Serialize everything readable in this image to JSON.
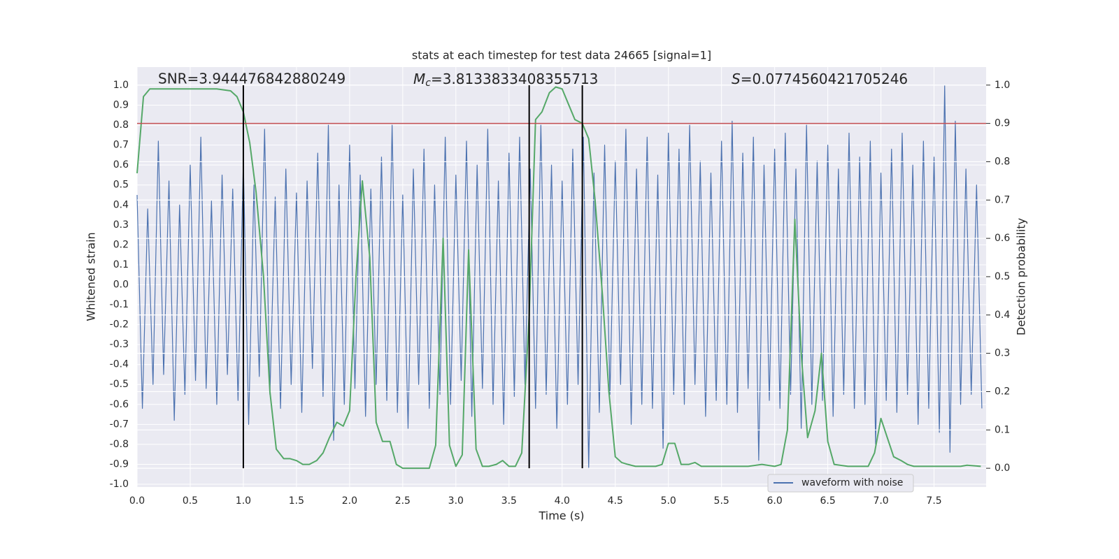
{
  "chart_data": {
    "type": "line",
    "title": "stats at each timestep for test data 24665 [signal=1]",
    "x_label": "Time (s)",
    "y_label": "Whitened strain",
    "y2_label": "Detection probability",
    "annotations": {
      "snr": "SNR=3.944476842880249",
      "mc_symbol": "M",
      "mc_subscript": "c",
      "mc_value": "=3.8133833408355713",
      "s_symbol": "S",
      "s_value": "=0.0774560421705246"
    },
    "xlim": [
      0,
      7.99
    ],
    "ylim": [
      -1.014,
      1.091
    ],
    "y2lim": [
      -0.049,
      1.047
    ],
    "xticks": [
      {
        "value": 0,
        "label": "0.0"
      },
      0.5,
      {
        "value": 1,
        "label": "1.0"
      },
      1.5,
      {
        "value": 2,
        "label": "2.0"
      },
      2.5,
      {
        "value": 3,
        "label": "3.0"
      },
      3.5,
      {
        "value": 4,
        "label": "4.0"
      },
      4.5,
      {
        "value": 5,
        "label": "5.0"
      },
      5.5,
      {
        "value": 6,
        "label": "6.0"
      },
      6.5,
      {
        "value": 7,
        "label": "7.0"
      },
      7.5
    ],
    "yticks": [
      {
        "value": -1,
        "label": "-1.0"
      },
      -0.9,
      -0.8,
      -0.7,
      -0.6,
      -0.5,
      -0.4,
      -0.3,
      -0.2,
      -0.1,
      {
        "value": 0,
        "label": "0.0"
      },
      0.1,
      0.2,
      0.3,
      0.4,
      0.5,
      0.6,
      0.7,
      0.8,
      0.9,
      {
        "value": 1,
        "label": "1.0"
      }
    ],
    "y2ticks": [
      {
        "value": 0,
        "label": "0.0"
      },
      0.1,
      0.2,
      0.3,
      0.4,
      0.5,
      0.6,
      0.7,
      0.8,
      0.9,
      {
        "value": 1,
        "label": "1.0"
      }
    ],
    "grid": true,
    "legend": "lower right",
    "series": [
      {
        "name": "waveform with noise",
        "color": "#4c72b0",
        "axis": "y",
        "x": [
          0,
          0.05,
          0.1,
          0.15,
          0.2,
          0.25,
          0.3,
          0.35,
          0.4,
          0.45,
          0.5,
          0.55,
          0.6,
          0.65,
          0.7,
          0.75,
          0.8,
          0.85,
          0.9,
          0.95,
          1,
          1.05,
          1.1,
          1.15,
          1.2,
          1.25,
          1.3,
          1.35,
          1.4,
          1.45,
          1.5,
          1.55,
          1.6,
          1.65,
          1.7,
          1.75,
          1.8,
          1.85,
          1.9,
          1.95,
          2,
          2.05,
          2.1,
          2.15,
          2.2,
          2.25,
          2.3,
          2.35,
          2.4,
          2.45,
          2.5,
          2.55,
          2.6,
          2.65,
          2.7,
          2.75,
          2.8,
          2.85,
          2.9,
          2.95,
          3,
          3.05,
          3.1,
          3.15,
          3.2,
          3.25,
          3.3,
          3.35,
          3.4,
          3.45,
          3.5,
          3.55,
          3.6,
          3.65,
          3.7,
          3.75,
          3.8,
          3.85,
          3.9,
          3.95,
          4,
          4.05,
          4.1,
          4.15,
          4.2,
          4.25,
          4.3,
          4.35,
          4.4,
          4.45,
          4.5,
          4.55,
          4.6,
          4.65,
          4.7,
          4.75,
          4.8,
          4.85,
          4.9,
          4.95,
          5,
          5.05,
          5.1,
          5.15,
          5.2,
          5.25,
          5.3,
          5.35,
          5.4,
          5.45,
          5.5,
          5.55,
          5.6,
          5.65,
          5.7,
          5.75,
          5.8,
          5.85,
          5.9,
          5.95,
          6,
          6.05,
          6.1,
          6.15,
          6.2,
          6.25,
          6.3,
          6.35,
          6.4,
          6.45,
          6.5,
          6.55,
          6.6,
          6.65,
          6.7,
          6.75,
          6.8,
          6.85,
          6.9,
          6.95,
          7,
          7.05,
          7.1,
          7.15,
          7.2,
          7.25,
          7.3,
          7.35,
          7.4,
          7.45,
          7.5,
          7.55,
          7.6,
          7.65,
          7.7,
          7.75,
          7.8,
          7.85,
          7.9,
          7.95
        ],
        "values": [
          0.45,
          -0.62,
          0.38,
          -0.5,
          0.72,
          -0.45,
          0.52,
          -0.68,
          0.4,
          -0.55,
          0.6,
          -0.48,
          0.74,
          -0.52,
          0.42,
          -0.6,
          0.55,
          -0.45,
          0.48,
          -0.58,
          0.62,
          -0.7,
          0.5,
          -0.46,
          0.78,
          -0.55,
          0.44,
          -0.62,
          0.58,
          -0.5,
          0.46,
          -0.64,
          0.52,
          -0.42,
          0.66,
          -0.56,
          0.8,
          -0.78,
          0.5,
          -0.6,
          0.7,
          -0.52,
          0.55,
          -0.66,
          0.48,
          -0.5,
          0.64,
          -0.58,
          0.8,
          -0.64,
          0.45,
          -0.72,
          0.58,
          -0.5,
          0.68,
          -0.62,
          0.5,
          -0.55,
          0.74,
          -0.6,
          0.55,
          -0.48,
          0.72,
          -0.66,
          0.6,
          -0.52,
          0.78,
          -0.6,
          0.52,
          -0.7,
          0.66,
          -0.56,
          0.74,
          -0.5,
          0.58,
          -0.62,
          0.8,
          -0.55,
          0.6,
          -0.72,
          0.52,
          -0.6,
          0.68,
          -0.5,
          0.74,
          -0.92,
          0.56,
          -0.64,
          0.7,
          -0.55,
          0.62,
          -0.5,
          0.78,
          -0.7,
          0.58,
          -0.6,
          0.74,
          -0.62,
          0.55,
          -0.82,
          0.76,
          -0.55,
          0.68,
          -0.6,
          0.8,
          -0.5,
          0.62,
          -0.66,
          0.56,
          -0.58,
          0.72,
          -0.6,
          0.82,
          -0.64,
          0.66,
          -0.52,
          0.74,
          -0.88,
          0.6,
          -0.58,
          0.68,
          -0.62,
          0.76,
          -0.55,
          0.58,
          -0.72,
          0.8,
          -0.6,
          0.62,
          -0.58,
          0.7,
          -0.66,
          0.58,
          -0.55,
          0.76,
          -0.62,
          0.64,
          -0.6,
          0.72,
          -0.8,
          0.56,
          -0.58,
          0.68,
          -0.64,
          0.76,
          -0.55,
          0.6,
          -0.7,
          0.72,
          -0.62,
          0.64,
          -0.74,
          1.0,
          -0.84,
          0.82,
          -0.6,
          0.58,
          -0.55,
          0.5,
          -0.62
        ]
      },
      {
        "color": "#55a868",
        "axis": "y2",
        "x": [
          0,
          0.06,
          0.12,
          0.25,
          0.5,
          0.75,
          0.88,
          0.94,
          1,
          1.06,
          1.12,
          1.19,
          1.25,
          1.31,
          1.38,
          1.44,
          1.5,
          1.56,
          1.62,
          1.69,
          1.75,
          1.81,
          1.88,
          1.94,
          2,
          2.06,
          2.12,
          2.19,
          2.25,
          2.31,
          2.38,
          2.44,
          2.5,
          2.62,
          2.75,
          2.81,
          2.88,
          2.94,
          3,
          3.06,
          3.12,
          3.19,
          3.25,
          3.31,
          3.38,
          3.44,
          3.5,
          3.56,
          3.62,
          3.69,
          3.75,
          3.81,
          3.88,
          3.94,
          4,
          4.06,
          4.12,
          4.19,
          4.25,
          4.31,
          4.38,
          4.44,
          4.5,
          4.56,
          4.62,
          4.69,
          4.75,
          4.88,
          4.94,
          5,
          5.06,
          5.12,
          5.19,
          5.25,
          5.31,
          5.44,
          5.56,
          5.75,
          5.88,
          6,
          6.06,
          6.12,
          6.19,
          6.25,
          6.31,
          6.38,
          6.44,
          6.5,
          6.56,
          6.69,
          6.88,
          6.94,
          7,
          7.06,
          7.12,
          7.19,
          7.25,
          7.31,
          7.5,
          7.75,
          7.81,
          7.94
        ],
        "values": [
          0.77,
          0.97,
          0.99,
          0.99,
          0.99,
          0.99,
          0.985,
          0.97,
          0.93,
          0.85,
          0.72,
          0.5,
          0.2,
          0.05,
          0.025,
          0.025,
          0.02,
          0.01,
          0.01,
          0.02,
          0.04,
          0.08,
          0.12,
          0.11,
          0.15,
          0.5,
          0.75,
          0.55,
          0.12,
          0.07,
          0.07,
          0.01,
          0,
          0,
          0,
          0.06,
          0.6,
          0.06,
          0.005,
          0.035,
          0.57,
          0.05,
          0.005,
          0.005,
          0.01,
          0.02,
          0.005,
          0.005,
          0.04,
          0.4,
          0.91,
          0.93,
          0.98,
          0.995,
          0.99,
          0.95,
          0.91,
          0.9,
          0.86,
          0.7,
          0.45,
          0.2,
          0.03,
          0.015,
          0.01,
          0.005,
          0.005,
          0.005,
          0.01,
          0.065,
          0.065,
          0.01,
          0.01,
          0.015,
          0.005,
          0.005,
          0.005,
          0.005,
          0.01,
          0.005,
          0.01,
          0.1,
          0.65,
          0.3,
          0.08,
          0.15,
          0.3,
          0.07,
          0.01,
          0.005,
          0.005,
          0.04,
          0.13,
          0.08,
          0.03,
          0.02,
          0.01,
          0.005,
          0.005,
          0.005,
          0.008,
          0.005
        ]
      }
    ],
    "threshold": {
      "value": 0.9,
      "axis": "y2",
      "color": "#c44e52"
    },
    "vlines": {
      "x": [
        1.0,
        3.69,
        4.19
      ],
      "ymin": -0.92,
      "ymax": 1.0,
      "color": "#000000"
    }
  }
}
